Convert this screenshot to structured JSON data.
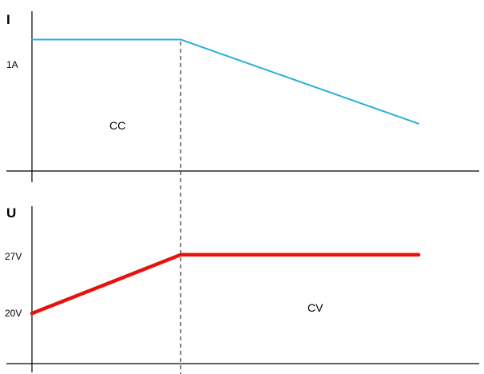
{
  "chart_data": [
    {
      "type": "line",
      "ylabel": "I",
      "y_ticks": [
        {
          "label": "1A",
          "value": 1.0
        }
      ],
      "annotation": "CC",
      "x": [
        0,
        1,
        2.6
      ],
      "series": [
        {
          "values": [
            1.0,
            1.0,
            0.2
          ],
          "color": "#2aafdf"
        }
      ],
      "ylim": [
        -0.25,
        1.3
      ],
      "xlim": [
        0,
        2.9
      ],
      "grid": false
    },
    {
      "type": "line",
      "ylabel": "U",
      "y_ticks": [
        {
          "label": "27V",
          "value": 27
        },
        {
          "label": "20V",
          "value": 20
        }
      ],
      "annotation": "CV",
      "x": [
        0,
        1,
        2.6
      ],
      "series": [
        {
          "values": [
            20,
            27,
            27
          ],
          "color": "#e8120c"
        }
      ],
      "ylim": [
        14,
        33
      ],
      "xlim": [
        0,
        2.9
      ],
      "grid": false
    }
  ],
  "divider": {
    "x": 1,
    "style": "dashed",
    "color": "#333333"
  }
}
